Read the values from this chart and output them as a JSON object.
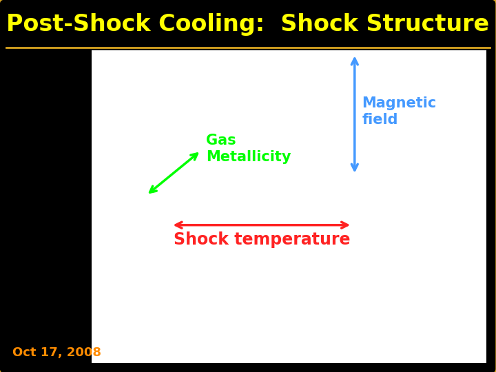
{
  "title": "Post-Shock Cooling:  Shock Structure",
  "title_color": "#FFFF00",
  "background_color": "#000000",
  "border_color": "#DAA520",
  "date_text": "Oct 17, 2008",
  "date_color": "#FF8C00",
  "date_fontsize": 13,
  "title_fontsize": 24,
  "gas_metallicity_text": "Gas\nMetallicity",
  "gas_metallicity_color": "#00FF00",
  "gas_metallicity_fontsize": 15,
  "magnetic_field_text": "Magnetic\nfield",
  "magnetic_field_color": "#4499FF",
  "magnetic_field_fontsize": 15,
  "shock_temp_text": "Shock temperature",
  "shock_temp_color": "#FF2222",
  "shock_temp_fontsize": 17,
  "panel_a_xlim": [
    100000000000.0,
    1e+16
  ],
  "panel_c_xlim": [
    100000000000.0,
    1e+17
  ],
  "panel_b_xlim": [
    100000000000.0,
    1e+16
  ],
  "panel_d_xlim": [
    100000000000.0,
    1e+17
  ],
  "ylim": [
    1000.0,
    100000000.0
  ]
}
